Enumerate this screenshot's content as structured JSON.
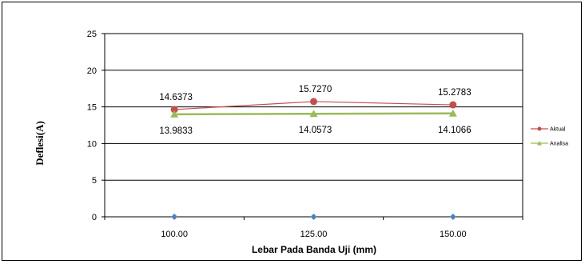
{
  "chart_data": {
    "type": "line",
    "title": "",
    "xlabel": "Lebar Pada Banda Uji (mm)",
    "ylabel": "Deflesi(A)",
    "categories": [
      "100.00",
      "125.00",
      "150.00"
    ],
    "ylim": [
      0,
      25
    ],
    "yticks": [
      "0",
      "5",
      "10",
      "15",
      "20",
      "25"
    ],
    "grid": "horizontal",
    "legend_position": "right",
    "series": [
      {
        "name": "Aktual",
        "color": "#c0504d",
        "marker": "circle",
        "values": [
          14.6373,
          15.727,
          15.2783
        ],
        "labels": [
          "14.6373",
          "15.7270",
          "15.2783"
        ],
        "label_position": "above"
      },
      {
        "name": "Analisa",
        "color": "#9bbb59",
        "marker": "triangle",
        "values": [
          13.9833,
          14.0573,
          14.1066
        ],
        "labels": [
          "13.9833",
          "14.0573",
          "14.1066"
        ],
        "label_position": "below"
      },
      {
        "color": "#4f81bd",
        "marker": "diamond",
        "values": [
          0,
          0,
          0
        ]
      }
    ]
  }
}
